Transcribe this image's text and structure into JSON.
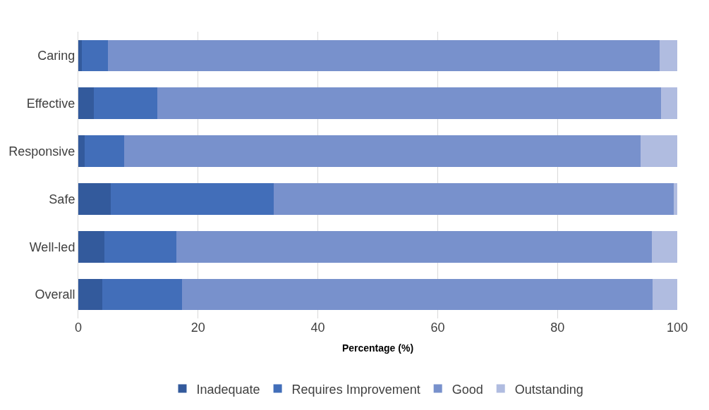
{
  "chart_data": {
    "type": "bar",
    "orientation": "horizontal",
    "stacked": true,
    "xlabel": "Percentage (%)",
    "categories": [
      "Caring",
      "Effective",
      "Responsive",
      "Safe",
      "Well-led",
      "Overall"
    ],
    "series": [
      {
        "name": "Inadequate",
        "color": "#335a9c",
        "values": [
          0.6,
          2.6,
          1.1,
          5.4,
          4.3,
          4.0
        ]
      },
      {
        "name": "Requires Improvement",
        "color": "#426eb9",
        "values": [
          4.3,
          10.6,
          6.5,
          27.2,
          12.1,
          13.3
        ]
      },
      {
        "name": "Good",
        "color": "#7891cc",
        "values": [
          92.1,
          84.1,
          86.3,
          66.8,
          79.4,
          78.6
        ]
      },
      {
        "name": "Outstanding",
        "color": "#b0bce0",
        "values": [
          3.0,
          2.7,
          6.1,
          0.6,
          4.2,
          4.1
        ]
      }
    ],
    "xlim": [
      0,
      100
    ],
    "xticks": [
      0,
      20,
      40,
      60,
      80,
      100
    ],
    "grid": "x",
    "legend": "bottom"
  }
}
